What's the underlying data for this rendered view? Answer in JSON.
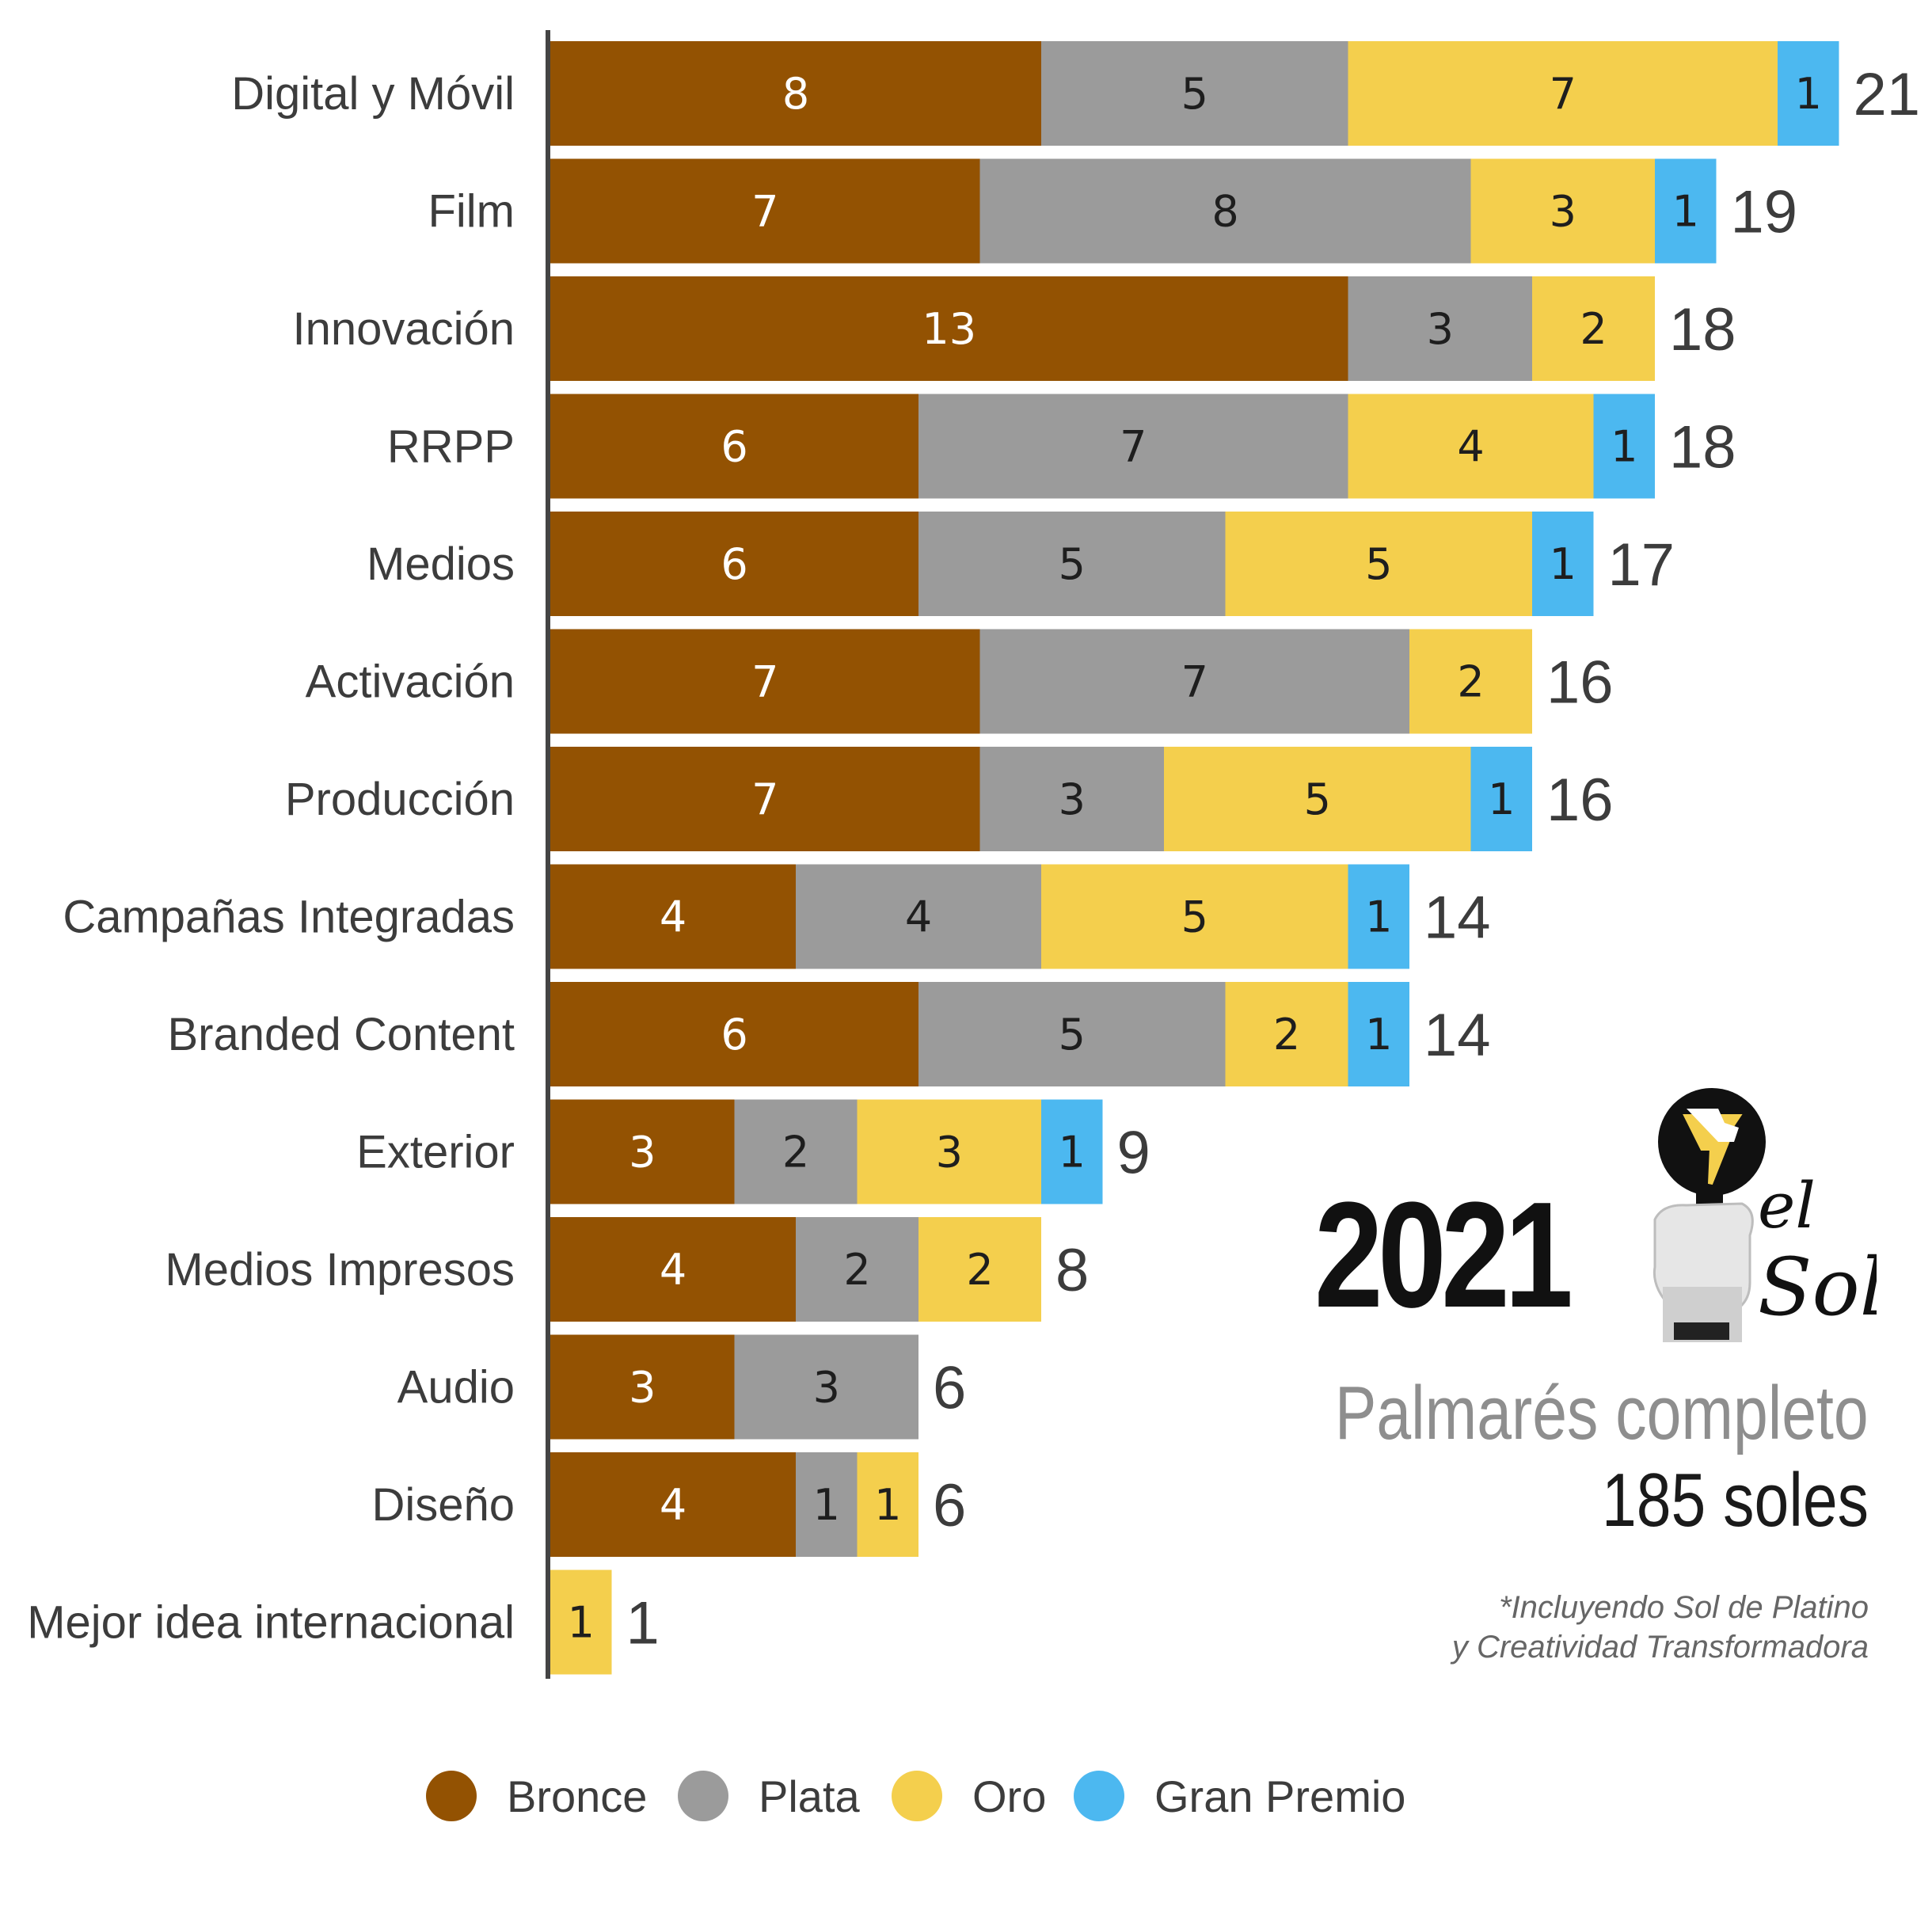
{
  "chart_data": {
    "type": "bar",
    "orientation": "horizontal",
    "stacked": true,
    "categories": [
      "Digital y Móvil",
      "Film",
      "Innovación",
      "RRPP",
      "Medios",
      "Activación",
      "Producción",
      "Campañas Integradas",
      "Branded Content",
      "Exterior",
      "Medios Impresos",
      "Audio",
      "Diseño",
      "Mejor idea internacional"
    ],
    "series": [
      {
        "name": "Bronce",
        "color": "#935202",
        "label_color": "#ffffff",
        "values": [
          8,
          7,
          13,
          6,
          6,
          7,
          7,
          4,
          6,
          3,
          4,
          3,
          4,
          0
        ]
      },
      {
        "name": "Plata",
        "color": "#9b9b9b",
        "label_color": "#1e1e1e",
        "values": [
          5,
          8,
          3,
          7,
          5,
          7,
          3,
          4,
          5,
          2,
          2,
          3,
          1,
          0
        ]
      },
      {
        "name": "Oro",
        "color": "#f4cf4d",
        "label_color": "#1e1e1e",
        "values": [
          7,
          3,
          2,
          4,
          5,
          2,
          5,
          5,
          2,
          3,
          2,
          0,
          1,
          1
        ]
      },
      {
        "name": "Gran Premio",
        "color": "#4cb8f0",
        "label_color": "#1e1e1e",
        "values": [
          1,
          1,
          0,
          1,
          1,
          0,
          1,
          1,
          1,
          1,
          0,
          0,
          0,
          0
        ]
      }
    ],
    "totals": [
      21,
      19,
      18,
      18,
      17,
      16,
      16,
      14,
      14,
      9,
      8,
      6,
      6,
      1
    ],
    "xlim": [
      0,
      21
    ],
    "grid": false,
    "legend": "bottom",
    "axis_color": "#444444"
  },
  "brand": {
    "year": "2021",
    "subtitle": "Palmarés completo",
    "count": "185 soles",
    "note_line1": "*Incluyendo Sol de Platino",
    "note_line2": "y Creatividad Transformadora",
    "logo_text_1": "el",
    "logo_text_2": "Sol",
    "logo_icon": "fist-holding-sun-trophy-icon"
  }
}
